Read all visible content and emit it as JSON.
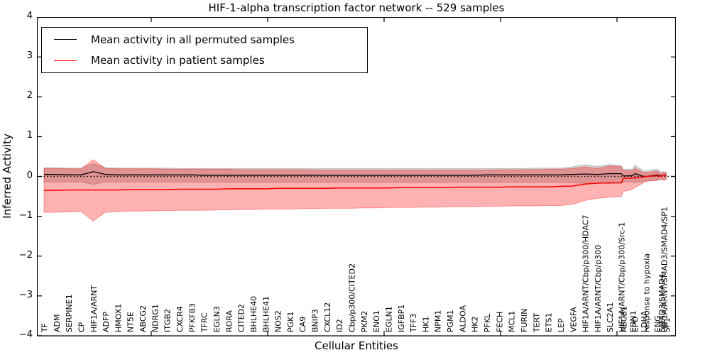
{
  "header": {
    "title": "HIF-1-alpha transcription factor network -- 529 samples"
  },
  "axes": {
    "ylabel": "Inferred Activity",
    "xlabel": "Cellular Entities",
    "ylim": [
      -4,
      4
    ],
    "yticks": [
      -4,
      -3,
      -2,
      -1,
      0,
      1,
      2,
      3,
      4
    ],
    "ytick_labels": [
      "−4",
      "−3",
      "−2",
      "−1",
      "0",
      "1",
      "2",
      "3",
      "4"
    ],
    "grid": false
  },
  "legend": {
    "position": "upper left",
    "entries": [
      {
        "label": "Mean activity in all permuted samples",
        "color": "#000000"
      },
      {
        "label": "Mean activity in patient samples",
        "color": "#ff0000"
      }
    ]
  },
  "colors": {
    "permuted_line": "#000000",
    "patient_line": "#ff0000",
    "permuted_band": "rgba(128,128,128,0.35)",
    "patient_band": "rgba(255,0,0,0.30)",
    "patient_band_edge": "rgba(255,0,0,0.35)",
    "zero_line": "#000000"
  },
  "chart_data": {
    "type": "line",
    "title": "HIF-1-alpha transcription factor network -- 529 samples",
    "xlabel": "Cellular Entities",
    "ylabel": "Inferred Activity",
    "ylim": [
      -4,
      4
    ],
    "legend_position": "upper left",
    "zero_reference_line": {
      "y": 0,
      "style": "dotted"
    },
    "entities": [
      {
        "name": "TF",
        "xi": 0
      },
      {
        "name": "ADM",
        "xi": 1
      },
      {
        "name": "SERPINE1",
        "xi": 2
      },
      {
        "name": "CP",
        "xi": 3
      },
      {
        "name": "HIF1A/ARNT",
        "xi": 4
      },
      {
        "name": "ADFP",
        "xi": 5
      },
      {
        "name": "HMOX1",
        "xi": 6
      },
      {
        "name": "NT5E",
        "xi": 7
      },
      {
        "name": "ABCG2",
        "xi": 8
      },
      {
        "name": "NDRG1",
        "xi": 9
      },
      {
        "name": "ITGB2",
        "xi": 10
      },
      {
        "name": "CXCR4",
        "xi": 11
      },
      {
        "name": "PFKFB3",
        "xi": 12
      },
      {
        "name": "TFRC",
        "xi": 13
      },
      {
        "name": "EGLN3",
        "xi": 14
      },
      {
        "name": "RORA",
        "xi": 15
      },
      {
        "name": "CITED2",
        "xi": 16
      },
      {
        "name": "BHLHE40",
        "xi": 17
      },
      {
        "name": "BHLHE41",
        "xi": 18
      },
      {
        "name": "NOS2",
        "xi": 19
      },
      {
        "name": "PGK1",
        "xi": 20
      },
      {
        "name": "CA9",
        "xi": 21
      },
      {
        "name": "BNIP3",
        "xi": 22
      },
      {
        "name": "CXCL12",
        "xi": 23
      },
      {
        "name": "ID2",
        "xi": 24
      },
      {
        "name": "Cbp/p300/CITED2",
        "xi": 25
      },
      {
        "name": "PKM2",
        "xi": 26
      },
      {
        "name": "ENO1",
        "xi": 27
      },
      {
        "name": "EGLN1",
        "xi": 28
      },
      {
        "name": "IGFBP1",
        "xi": 29
      },
      {
        "name": "TFF3",
        "xi": 30
      },
      {
        "name": "HK1",
        "xi": 31
      },
      {
        "name": "NPM1",
        "xi": 32
      },
      {
        "name": "PGM1",
        "xi": 33
      },
      {
        "name": "ALDOA",
        "xi": 34
      },
      {
        "name": "HK2",
        "xi": 35
      },
      {
        "name": "PFKL",
        "xi": 36
      },
      {
        "name": "FECH",
        "xi": 37
      },
      {
        "name": "MCL1",
        "xi": 38
      },
      {
        "name": "FURIN",
        "xi": 39
      },
      {
        "name": "TERT",
        "xi": 40
      },
      {
        "name": "ETS1",
        "xi": 41
      },
      {
        "name": "LEP",
        "xi": 42
      },
      {
        "name": "VEGFA",
        "xi": 43
      },
      {
        "name": "HIF1A/ARNT/Cbp/p300/HDAC7",
        "xi": 44
      },
      {
        "name": "HIF1A/ARNT/Cbp/p300",
        "xi": 45
      },
      {
        "name": "SLC2A1",
        "xi": 46
      },
      {
        "name": "HIF1A/ARNT/Cbp/p300/Src-1",
        "xi": 46.95
      },
      {
        "name": "ABCB1",
        "xi": 47.1
      },
      {
        "name": "EDN1",
        "xi": 47.85
      },
      {
        "name": "EPO",
        "xi": 48.05
      },
      {
        "name": "LDHA",
        "xi": 48.75
      },
      {
        "name": "response to hypoxia",
        "xi": 48.95
      },
      {
        "name": "ENG",
        "xi": 49.85
      },
      {
        "name": "SMAD3/SMAD4",
        "xi": 50.2
      },
      {
        "name": "HIF1A/ARNT/SMAD3/SMAD4/SP1",
        "xi": 50.4
      },
      {
        "name": "SP1",
        "xi": 50.6
      }
    ],
    "series": [
      {
        "name": "Mean activity in all permuted samples",
        "color": "#000000",
        "values": [
          0.05,
          0.05,
          0.04,
          0.04,
          0.12,
          0.05,
          0.04,
          0.04,
          0.04,
          0.04,
          0.04,
          0.04,
          0.04,
          0.03,
          0.03,
          0.03,
          0.03,
          0.03,
          0.03,
          0.03,
          0.03,
          0.03,
          0.03,
          0.03,
          0.03,
          0.03,
          0.03,
          0.03,
          0.03,
          0.03,
          0.03,
          0.03,
          0.03,
          0.03,
          0.03,
          0.03,
          0.04,
          0.04,
          0.04,
          0.04,
          0.04,
          0.04,
          0.04,
          0.05,
          0.06,
          0.05,
          0.07,
          0.07,
          0.01,
          0.02,
          0.07,
          0.0,
          0.0,
          0.04,
          0.01,
          0.04,
          0.03
        ],
        "band_upper": [
          0.22,
          0.22,
          0.21,
          0.21,
          0.32,
          0.22,
          0.21,
          0.21,
          0.21,
          0.21,
          0.21,
          0.2,
          0.2,
          0.2,
          0.2,
          0.2,
          0.2,
          0.2,
          0.2,
          0.2,
          0.2,
          0.2,
          0.2,
          0.2,
          0.2,
          0.2,
          0.2,
          0.2,
          0.2,
          0.2,
          0.2,
          0.2,
          0.2,
          0.2,
          0.2,
          0.2,
          0.2,
          0.2,
          0.2,
          0.2,
          0.21,
          0.21,
          0.21,
          0.24,
          0.3,
          0.25,
          0.3,
          0.28,
          0.18,
          0.18,
          0.28,
          0.14,
          0.14,
          0.18,
          0.1,
          0.12,
          0.1
        ],
        "band_lower": [
          -0.14,
          -0.14,
          -0.14,
          -0.14,
          -0.2,
          -0.14,
          -0.14,
          -0.14,
          -0.14,
          -0.14,
          -0.14,
          -0.14,
          -0.14,
          -0.15,
          -0.15,
          -0.15,
          -0.15,
          -0.15,
          -0.15,
          -0.15,
          -0.15,
          -0.15,
          -0.15,
          -0.15,
          -0.15,
          -0.15,
          -0.15,
          -0.15,
          -0.15,
          -0.15,
          -0.15,
          -0.15,
          -0.15,
          -0.15,
          -0.15,
          -0.15,
          -0.15,
          -0.15,
          -0.15,
          -0.15,
          -0.15,
          -0.15,
          -0.15,
          -0.16,
          -0.18,
          -0.16,
          -0.18,
          -0.16,
          -0.14,
          -0.14,
          -0.16,
          -0.12,
          -0.12,
          -0.1,
          -0.06,
          -0.08,
          -0.05
        ]
      },
      {
        "name": "Mean activity in patient samples",
        "color": "#ff0000",
        "values": [
          -0.35,
          -0.35,
          -0.34,
          -0.34,
          -0.34,
          -0.34,
          -0.34,
          -0.33,
          -0.33,
          -0.33,
          -0.33,
          -0.32,
          -0.32,
          -0.32,
          -0.32,
          -0.31,
          -0.31,
          -0.31,
          -0.31,
          -0.3,
          -0.3,
          -0.3,
          -0.3,
          -0.3,
          -0.29,
          -0.29,
          -0.29,
          -0.29,
          -0.29,
          -0.28,
          -0.28,
          -0.28,
          -0.28,
          -0.28,
          -0.27,
          -0.27,
          -0.27,
          -0.27,
          -0.26,
          -0.26,
          -0.26,
          -0.26,
          -0.25,
          -0.24,
          -0.19,
          -0.17,
          -0.16,
          -0.16,
          -0.05,
          -0.04,
          -0.04,
          -0.01,
          0.0,
          0.02,
          0.0,
          0.04,
          0.02
        ],
        "band_upper": [
          0.2,
          0.2,
          0.19,
          0.19,
          0.42,
          0.2,
          0.19,
          0.19,
          0.19,
          0.19,
          0.18,
          0.18,
          0.18,
          0.18,
          0.18,
          0.18,
          0.17,
          0.17,
          0.17,
          0.17,
          0.17,
          0.17,
          0.16,
          0.16,
          0.16,
          0.16,
          0.16,
          0.16,
          0.16,
          0.16,
          0.16,
          0.16,
          0.16,
          0.16,
          0.16,
          0.16,
          0.16,
          0.17,
          0.17,
          0.17,
          0.17,
          0.18,
          0.18,
          0.2,
          0.24,
          0.2,
          0.26,
          0.24,
          0.14,
          0.14,
          0.2,
          0.1,
          0.1,
          0.13,
          0.07,
          0.1,
          0.08
        ],
        "band_lower": [
          -0.9,
          -0.9,
          -0.89,
          -0.88,
          -1.12,
          -0.9,
          -0.88,
          -0.87,
          -0.87,
          -0.86,
          -0.86,
          -0.85,
          -0.85,
          -0.85,
          -0.84,
          -0.84,
          -0.83,
          -0.83,
          -0.82,
          -0.82,
          -0.82,
          -0.81,
          -0.81,
          -0.8,
          -0.8,
          -0.8,
          -0.79,
          -0.79,
          -0.78,
          -0.78,
          -0.78,
          -0.77,
          -0.77,
          -0.76,
          -0.76,
          -0.76,
          -0.75,
          -0.75,
          -0.74,
          -0.74,
          -0.74,
          -0.73,
          -0.73,
          -0.7,
          -0.6,
          -0.55,
          -0.52,
          -0.5,
          -0.38,
          -0.32,
          -0.28,
          -0.16,
          -0.12,
          -0.1,
          -0.07,
          -0.1,
          -0.08
        ]
      }
    ]
  }
}
